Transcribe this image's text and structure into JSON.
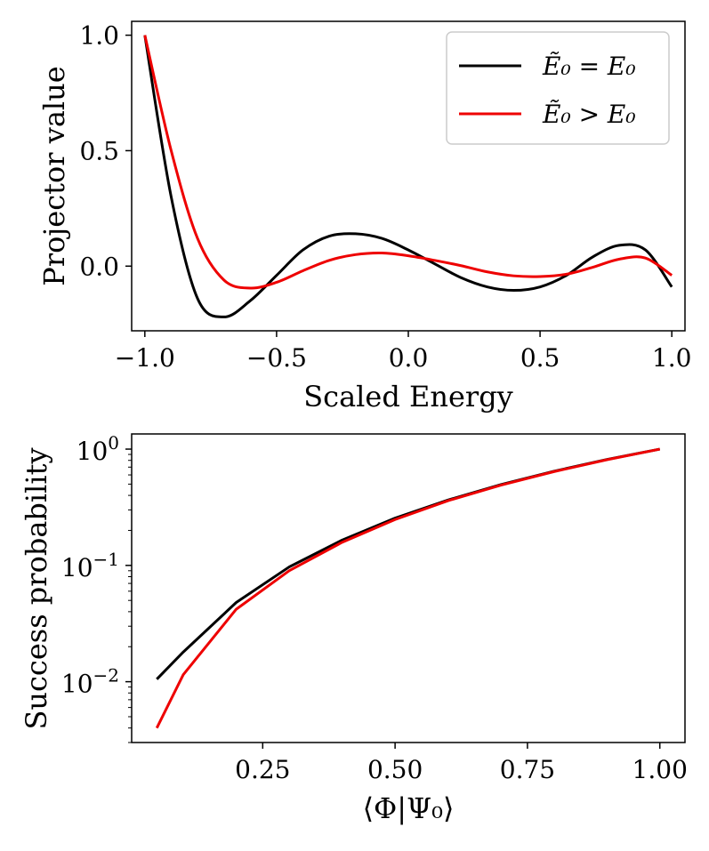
{
  "chart_data": [
    {
      "type": "line",
      "title": "",
      "xlabel": "Scaled Energy",
      "ylabel": "Projector value",
      "xlim": [
        -1.05,
        1.05
      ],
      "ylim": [
        -0.28,
        1.06
      ],
      "xticks": [
        -1.0,
        -0.5,
        0.0,
        0.5,
        1.0
      ],
      "xtick_labels": [
        "−1.0",
        "−0.5",
        "0.0",
        "0.5",
        "1.0"
      ],
      "yticks": [
        0.0,
        0.5,
        1.0
      ],
      "ytick_labels": [
        "0.0",
        "0.5",
        "1.0"
      ],
      "legend_position": "top-right",
      "series": [
        {
          "name": "Ẽ₀ = E₀",
          "color": "#000000",
          "x": [
            -1.0,
            -0.9,
            -0.8,
            -0.7,
            -0.6,
            -0.5,
            -0.4,
            -0.3,
            -0.2,
            -0.1,
            0.0,
            0.1,
            0.2,
            0.3,
            0.4,
            0.5,
            0.6,
            0.7,
            0.8,
            0.9,
            1.0
          ],
          "y": [
            1.0,
            0.3,
            -0.14,
            -0.22,
            -0.15,
            -0.04,
            0.07,
            0.13,
            0.14,
            0.12,
            0.07,
            0.01,
            -0.05,
            -0.09,
            -0.105,
            -0.09,
            -0.04,
            0.04,
            0.09,
            0.07,
            -0.09
          ]
        },
        {
          "name": "Ẽ₀ > E₀",
          "color": "#ee0000",
          "x": [
            -1.0,
            -0.9,
            -0.8,
            -0.7,
            -0.6,
            -0.5,
            -0.4,
            -0.3,
            -0.2,
            -0.1,
            0.0,
            0.1,
            0.2,
            0.3,
            0.4,
            0.5,
            0.6,
            0.7,
            0.8,
            0.9,
            1.0
          ],
          "y": [
            1.0,
            0.5,
            0.12,
            -0.06,
            -0.095,
            -0.07,
            -0.02,
            0.025,
            0.05,
            0.057,
            0.045,
            0.025,
            0.002,
            -0.025,
            -0.042,
            -0.045,
            -0.035,
            -0.005,
            0.03,
            0.035,
            -0.04
          ]
        }
      ]
    },
    {
      "type": "line",
      "title": "",
      "xlabel": "⟨Φ|Ψ₀⟩",
      "ylabel": "Success probability",
      "yscale": "log",
      "xlim": [
        0.0025,
        1.0475
      ],
      "ylim": [
        0.003,
        1.35
      ],
      "xticks": [
        0.25,
        0.5,
        0.75,
        1.0
      ],
      "xtick_labels": [
        "0.25",
        "0.50",
        "0.75",
        "1.00"
      ],
      "yticks": [
        0.01,
        0.1,
        1.0
      ],
      "ytick_labels": [
        {
          "base": "10",
          "exp": "−2"
        },
        {
          "base": "10",
          "exp": "−1"
        },
        {
          "base": "10",
          "exp": "0"
        }
      ],
      "series": [
        {
          "name": "Ẽ₀ = E₀",
          "color": "#000000",
          "x": [
            0.05,
            0.1,
            0.2,
            0.3,
            0.4,
            0.5,
            0.6,
            0.7,
            0.8,
            0.9,
            1.0
          ],
          "y": [
            0.0105,
            0.018,
            0.048,
            0.097,
            0.165,
            0.255,
            0.365,
            0.495,
            0.645,
            0.815,
            1.0
          ]
        },
        {
          "name": "Ẽ₀ > E₀",
          "color": "#ee0000",
          "x": [
            0.05,
            0.1,
            0.2,
            0.3,
            0.4,
            0.5,
            0.6,
            0.7,
            0.8,
            0.9,
            1.0
          ],
          "y": [
            0.004,
            0.0115,
            0.042,
            0.09,
            0.158,
            0.248,
            0.36,
            0.49,
            0.64,
            0.81,
            1.0
          ]
        }
      ]
    }
  ]
}
